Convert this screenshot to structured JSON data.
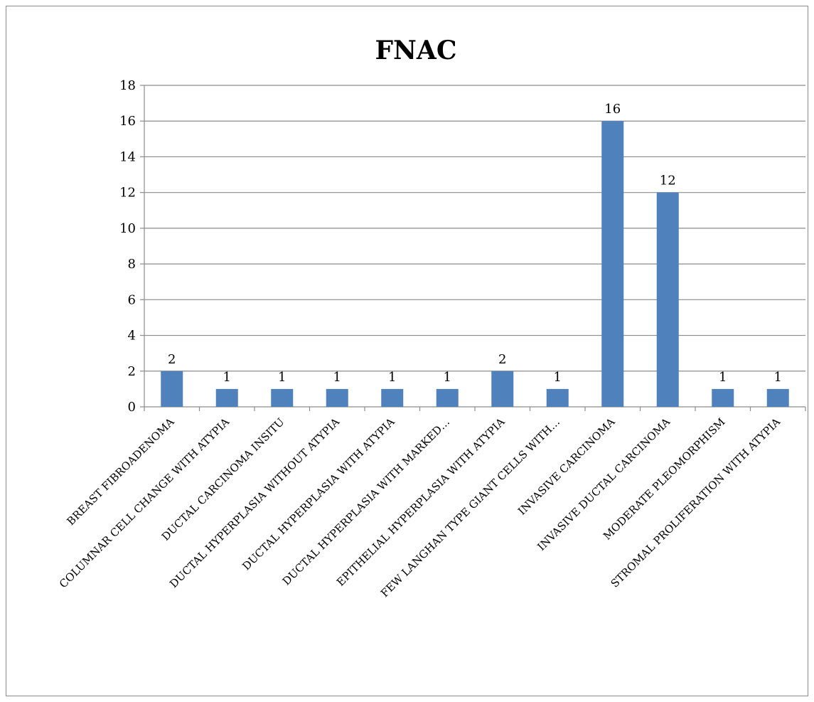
{
  "chart_data": {
    "type": "bar",
    "title": "FNAC",
    "xlabel": "",
    "ylabel": "",
    "ylim": [
      0,
      18
    ],
    "y_ticks": [
      0,
      2,
      4,
      6,
      8,
      10,
      12,
      14,
      16,
      18
    ],
    "grid": true,
    "legend": "none",
    "bar_color": "#4f81bd",
    "categories": [
      "BREAST FIBROADENOMA",
      "COLUMNAR CELL CHANGE WITH ATYPIA",
      "DUCTAL CARCINOMA INSITU",
      "DUCTAL HYPERPLASIA  WITHOUT ATYPIA",
      "DUCTAL HYPERPLASIA WITH ATYPIA",
      "DUCTAL HYPERPLASIA WITH MARKED…",
      "EPITHELIAL HYPERPLASIA WITH ATYPIA",
      "FEW LANGHAN TYPE GIANT CELLS WITH…",
      "INVASIVE CARCINOMA",
      "INVASIVE DUCTAL CARCINOMA",
      "MODERATE PLEOMORPHISM",
      "STROMAL PROLIFERATION WITH ATYPIA"
    ],
    "values": [
      2,
      1,
      1,
      1,
      1,
      1,
      2,
      1,
      16,
      12,
      1,
      1
    ]
  }
}
